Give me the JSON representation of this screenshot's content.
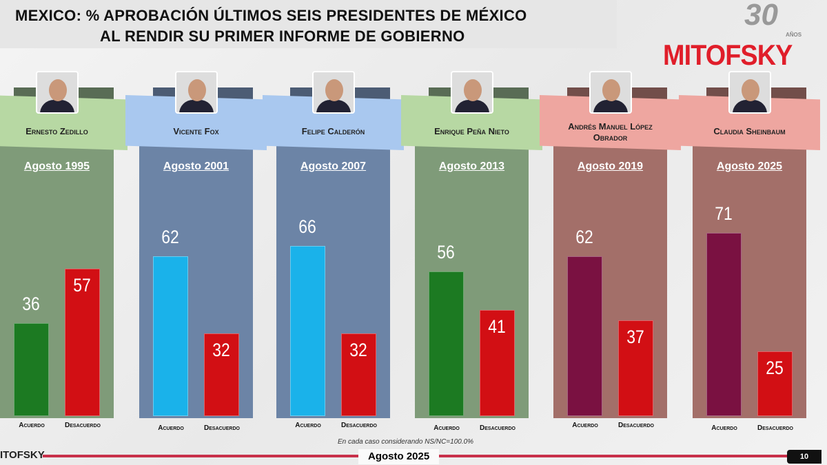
{
  "header": {
    "title_line1": "MEXICO: % APROBACIÓN ÚLTIMOS SEIS PRESIDENTES DE MÉXICO",
    "title_line2": "AL RENDIR SU PRIMER INFORME DE GOBIERNO"
  },
  "logo": {
    "text": "MITOFSKY",
    "anniversary": "30",
    "anniversary_sub": "AÑOS"
  },
  "footer": {
    "note": "En cada caso considerando NS/NC=100.0%",
    "date": "Agosto 2025",
    "page": "10",
    "logo": "ITOFSKY"
  },
  "colors": {
    "acuerdo_green": "#1c7a22",
    "acuerdo_blue": "#1ab2ea",
    "acuerdo_maroon": "#7a1141",
    "desacuerdo": "#d20f14"
  },
  "chart_data": {
    "type": "bar",
    "title": "MEXICO: % APROBACIÓN ÚLTIMOS SEIS PRESIDENTES DE MÉXICO AL RENDIR SU PRIMER INFORME DE GOBIERNO",
    "ylim": [
      0,
      100
    ],
    "category_labels": [
      "Acuerdo",
      "Desacuerdo"
    ],
    "groups": [
      {
        "name": "Ernesto Zedillo",
        "date": "Agosto 1995",
        "acuerdo": 36,
        "desacuerdo": 57,
        "theme": "green"
      },
      {
        "name": "Vicente Fox",
        "date": "Agosto 2001",
        "acuerdo": 62,
        "desacuerdo": 32,
        "theme": "blue"
      },
      {
        "name": "Felipe Calderón",
        "date": "Agosto 2007",
        "acuerdo": 66,
        "desacuerdo": 32,
        "theme": "blue"
      },
      {
        "name": "Enrique Peña Nieto",
        "date": "Agosto 2013",
        "acuerdo": 56,
        "desacuerdo": 41,
        "theme": "green"
      },
      {
        "name": "Andrés Manuel López Obrador",
        "date": "Agosto 2019",
        "acuerdo": 62,
        "desacuerdo": 37,
        "theme": "maroon"
      },
      {
        "name": "Claudia Sheinbaum",
        "date": "Agosto 2025",
        "acuerdo": 71,
        "desacuerdo": 25,
        "theme": "maroon"
      }
    ]
  }
}
